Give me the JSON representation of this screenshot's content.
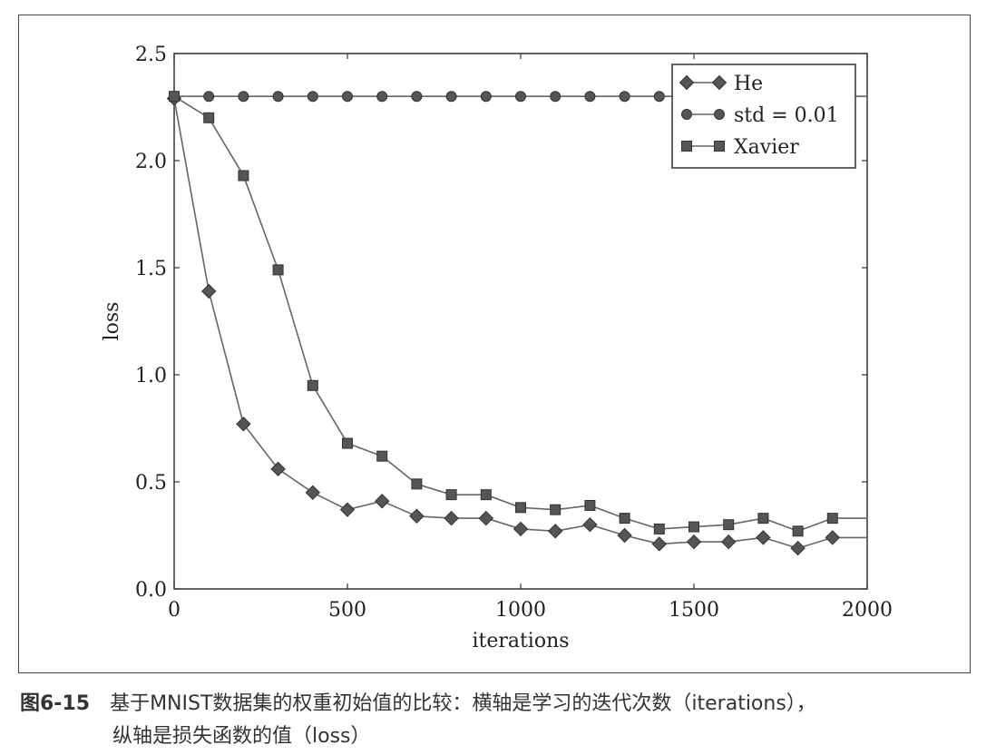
{
  "caption": {
    "label": "图6-15",
    "line1": "基于MNIST数据集的权重初始值的比较：横轴是学习的迭代次数（iterations），",
    "line2": "纵轴是损失函数的值（loss）"
  },
  "chart_data": {
    "type": "line",
    "xlabel": "iterations",
    "ylabel": "loss",
    "xlim": [
      0,
      2000
    ],
    "ylim": [
      0.0,
      2.5
    ],
    "xticks": [
      "0",
      "500",
      "1000",
      "1500",
      "2000"
    ],
    "yticks": [
      "0.0",
      "0.5",
      "1.0",
      "1.5",
      "2.0",
      "2.5"
    ],
    "grid": false,
    "legend_position": "top-right",
    "line_color": "#666666",
    "marker_color": "#555555",
    "series": [
      {
        "name": "He",
        "marker": "diamond",
        "x": [
          0,
          100,
          200,
          300,
          400,
          500,
          600,
          700,
          800,
          900,
          1000,
          1100,
          1200,
          1300,
          1400,
          1500,
          1600,
          1700,
          1800,
          1900
        ],
        "values": [
          2.29,
          1.39,
          0.77,
          0.56,
          0.45,
          0.37,
          0.41,
          0.34,
          0.33,
          0.33,
          0.28,
          0.27,
          0.3,
          0.25,
          0.21,
          0.22,
          0.22,
          0.24,
          0.19,
          0.24
        ]
      },
      {
        "name": "std = 0.01",
        "marker": "circle",
        "x": [
          0,
          100,
          200,
          300,
          400,
          500,
          600,
          700,
          800,
          900,
          1000,
          1100,
          1200,
          1300,
          1400,
          1500,
          1600,
          1700,
          1800,
          1900
        ],
        "values": [
          2.3,
          2.3,
          2.3,
          2.3,
          2.3,
          2.3,
          2.3,
          2.3,
          2.3,
          2.3,
          2.3,
          2.3,
          2.3,
          2.3,
          2.3,
          2.3,
          2.3,
          2.3,
          2.3,
          2.3
        ]
      },
      {
        "name": "Xavier",
        "marker": "square",
        "x": [
          0,
          100,
          200,
          300,
          400,
          500,
          600,
          700,
          800,
          900,
          1000,
          1100,
          1200,
          1300,
          1400,
          1500,
          1600,
          1700,
          1800,
          1900
        ],
        "values": [
          2.3,
          2.2,
          1.93,
          1.49,
          0.95,
          0.68,
          0.62,
          0.49,
          0.44,
          0.44,
          0.38,
          0.37,
          0.39,
          0.33,
          0.28,
          0.29,
          0.3,
          0.33,
          0.27,
          0.33
        ]
      }
    ]
  }
}
